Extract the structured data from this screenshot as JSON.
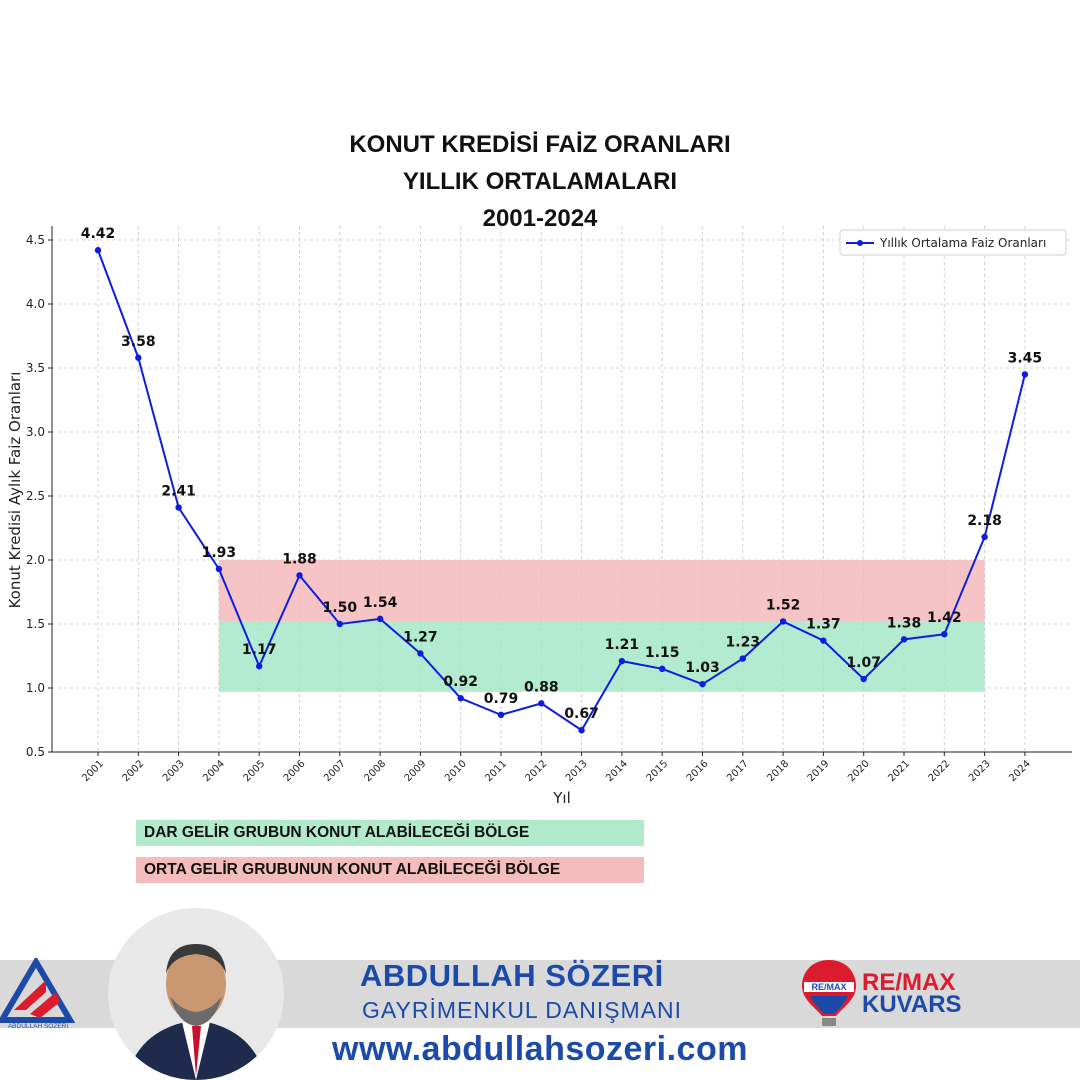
{
  "chart_data": {
    "type": "line",
    "title_lines": [
      "KONUT KREDİSİ FAİZ ORANLARI",
      "YILLIK ORTALAMALARI",
      "2001-2024"
    ],
    "xlabel": "Yıl",
    "ylabel": "Konut Kredisi Aylık Faiz Oranları",
    "ylim": [
      0.5,
      4.5
    ],
    "yticks": [
      "0.5",
      "1.0",
      "1.5",
      "2.0",
      "2.5",
      "3.0",
      "3.5",
      "4.0",
      "4.5"
    ],
    "grid": true,
    "legend_position": "top-right",
    "categories": [
      "2001",
      "2002",
      "2003",
      "2004",
      "2005",
      "2006",
      "2007",
      "2008",
      "2009",
      "2010",
      "2011",
      "2012",
      "2013",
      "2014",
      "2015",
      "2016",
      "2017",
      "2018",
      "2019",
      "2020",
      "2021",
      "2022",
      "2023",
      "2024"
    ],
    "series": [
      {
        "name": "Yıllık Ortalama Faiz Oranları",
        "color": "#0b1de0",
        "values": [
          4.42,
          3.58,
          2.41,
          1.93,
          1.17,
          1.88,
          1.5,
          1.54,
          1.27,
          0.92,
          0.79,
          0.88,
          0.67,
          1.21,
          1.15,
          1.03,
          1.23,
          1.52,
          1.37,
          1.07,
          1.38,
          1.42,
          2.18,
          3.45
        ],
        "data_labels": [
          "4.42",
          "3.58",
          "2.41",
          "1.93",
          "1.17",
          "1.88",
          "1.50",
          "1.54",
          "1.27",
          "0.92",
          "0.79",
          "0.88",
          "0.67",
          "1.21",
          "1.15",
          "1.03",
          "1.23",
          "1.52",
          "1.37",
          "1.07",
          "1.38",
          "1.42",
          "2.18",
          "3.45"
        ]
      }
    ],
    "bands": [
      {
        "name": "green-band",
        "ymin": 0.97,
        "ymax": 1.52,
        "x_from": "2004",
        "x_to": "2023",
        "color": "#9fe6c4"
      },
      {
        "name": "red-band",
        "ymin": 1.52,
        "ymax": 2.0,
        "x_from": "2004",
        "x_to": "2023",
        "color": "#f4b5b5"
      }
    ]
  },
  "band_legend": {
    "green_label": "DAR GELİR GRUBUN KONUT ALABİLECEĞİ BÖLGE",
    "green_color": "#b1ebcc",
    "red_label": "ORTA GELİR GRUBUNUN KONUT ALABİLECEĞİ BÖLGE",
    "red_color": "#f4bcbc"
  },
  "footer": {
    "name": "ABDULLAH SÖZERİ",
    "job_title": "GAYRİMENKUL DANIŞMANI",
    "website": "www.abdullahsozeri.com",
    "brand_logo_text": "ABDULLAH SÖZERİ",
    "remax_line1": "RE/MAX",
    "remax_line2": "KUVARS",
    "accent_color": "#1c4aa8",
    "remax_red": "#dc1c2e"
  }
}
